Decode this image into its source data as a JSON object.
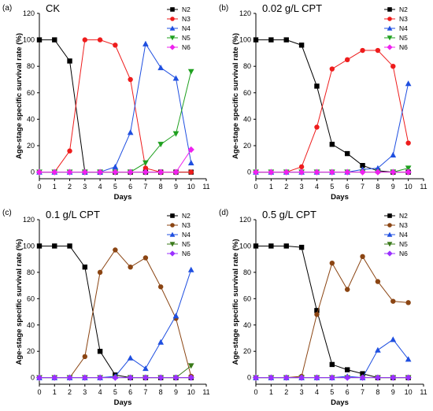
{
  "chart_data": [
    {
      "type": "line",
      "panel_label": "(a)",
      "title": "CK",
      "xlabel": "Days",
      "ylabel": "Age-stage specific survival rate (%)",
      "xlim": [
        0,
        11
      ],
      "ylim": [
        -5,
        120
      ],
      "x_ticks": [
        0,
        1,
        2,
        3,
        4,
        5,
        6,
        7,
        8,
        9,
        10,
        11
      ],
      "y_ticks": [
        0,
        20,
        40,
        60,
        80,
        100,
        120
      ],
      "legend_position": "top-right",
      "series": [
        {
          "name": "N2",
          "color": "#000000",
          "marker": "square",
          "x": [
            0,
            1,
            2,
            3,
            4,
            5,
            6,
            7,
            8,
            9,
            10
          ],
          "y": [
            100,
            100,
            84,
            0,
            0,
            0,
            0,
            0,
            0,
            0,
            0
          ]
        },
        {
          "name": "N3",
          "color": "#ee1c1c",
          "marker": "circle",
          "x": [
            0,
            1,
            2,
            3,
            4,
            5,
            6,
            7,
            8,
            9,
            10
          ],
          "y": [
            0,
            0,
            16,
            100,
            100,
            96,
            70,
            3,
            0,
            0,
            0
          ]
        },
        {
          "name": "N4",
          "color": "#1f4fe0",
          "marker": "triangle-up",
          "x": [
            0,
            1,
            2,
            3,
            4,
            5,
            6,
            7,
            8,
            9,
            10
          ],
          "y": [
            0,
            0,
            0,
            0,
            0,
            4,
            30,
            97,
            79,
            71,
            7
          ]
        },
        {
          "name": "N5",
          "color": "#1fa01f",
          "marker": "triangle-down",
          "x": [
            0,
            1,
            2,
            3,
            4,
            5,
            6,
            7,
            8,
            9,
            10
          ],
          "y": [
            0,
            0,
            0,
            0,
            0,
            0,
            0,
            7,
            21,
            29,
            76
          ]
        },
        {
          "name": "N6",
          "color": "#ee22ee",
          "marker": "diamond",
          "x": [
            0,
            1,
            2,
            3,
            4,
            5,
            6,
            7,
            8,
            9,
            10
          ],
          "y": [
            0,
            0,
            0,
            0,
            0,
            0,
            0,
            0,
            0,
            0,
            17
          ]
        }
      ]
    },
    {
      "type": "line",
      "panel_label": "(b)",
      "title": "0.02 g/L CPT",
      "xlabel": "Days",
      "ylabel": "Age-stage specific survival rate (%)",
      "xlim": [
        0,
        11
      ],
      "ylim": [
        -5,
        120
      ],
      "x_ticks": [
        0,
        1,
        2,
        3,
        4,
        5,
        6,
        7,
        8,
        9,
        10,
        11
      ],
      "y_ticks": [
        0,
        20,
        40,
        60,
        80,
        100,
        120
      ],
      "legend_position": "top-right",
      "series": [
        {
          "name": "N2",
          "color": "#000000",
          "marker": "square",
          "x": [
            0,
            1,
            2,
            3,
            4,
            5,
            6,
            7,
            8,
            9,
            10
          ],
          "y": [
            100,
            100,
            100,
            96,
            65,
            21,
            14,
            5,
            1,
            0,
            0
          ]
        },
        {
          "name": "N3",
          "color": "#ee1c1c",
          "marker": "circle",
          "x": [
            0,
            1,
            2,
            3,
            4,
            5,
            6,
            7,
            8,
            9,
            10
          ],
          "y": [
            0,
            0,
            0,
            4,
            34,
            78,
            85,
            92,
            92,
            80,
            22
          ]
        },
        {
          "name": "N4",
          "color": "#1f4fe0",
          "marker": "triangle-up",
          "x": [
            0,
            1,
            2,
            3,
            4,
            5,
            6,
            7,
            8,
            9,
            10
          ],
          "y": [
            0,
            0,
            0,
            0,
            0,
            0,
            0,
            2,
            3,
            13,
            67
          ]
        },
        {
          "name": "N5",
          "color": "#1fa01f",
          "marker": "triangle-down",
          "x": [
            0,
            1,
            2,
            3,
            4,
            5,
            6,
            7,
            8,
            9,
            10
          ],
          "y": [
            0,
            0,
            0,
            0,
            0,
            0,
            0,
            0,
            0,
            0,
            3
          ]
        },
        {
          "name": "N6",
          "color": "#ee22ee",
          "marker": "diamond",
          "x": [
            0,
            1,
            2,
            3,
            4,
            5,
            6,
            7,
            8,
            9,
            10
          ],
          "y": [
            0,
            0,
            0,
            0,
            0,
            0,
            0,
            0,
            0,
            0,
            0
          ]
        }
      ]
    },
    {
      "type": "line",
      "panel_label": "(c)",
      "title": "0.1 g/L CPT",
      "xlabel": "Days",
      "ylabel": "Age-stage specific survival rate (%)",
      "xlim": [
        0,
        11
      ],
      "ylim": [
        -5,
        120
      ],
      "x_ticks": [
        0,
        1,
        2,
        3,
        4,
        5,
        6,
        7,
        8,
        9,
        10,
        11
      ],
      "y_ticks": [
        0,
        20,
        40,
        60,
        80,
        100,
        120
      ],
      "legend_position": "top-right",
      "series": [
        {
          "name": "N2",
          "color": "#000000",
          "marker": "square",
          "x": [
            0,
            1,
            2,
            3,
            4,
            5,
            6,
            7,
            8,
            9,
            10
          ],
          "y": [
            100,
            100,
            100,
            84,
            20,
            2,
            0,
            0,
            0,
            0,
            0
          ]
        },
        {
          "name": "N3",
          "color": "#8b4513",
          "marker": "circle",
          "x": [
            0,
            1,
            2,
            3,
            4,
            5,
            6,
            7,
            8,
            9,
            10
          ],
          "y": [
            0,
            0,
            0,
            16,
            80,
            97,
            84,
            91,
            69,
            45,
            1
          ]
        },
        {
          "name": "N4",
          "color": "#1f4fe0",
          "marker": "triangle-up",
          "x": [
            0,
            1,
            2,
            3,
            4,
            5,
            6,
            7,
            8,
            9,
            10
          ],
          "y": [
            0,
            0,
            0,
            0,
            0,
            1,
            15,
            7,
            27,
            47,
            82
          ]
        },
        {
          "name": "N5",
          "color": "#3a7a1a",
          "marker": "triangle-down",
          "x": [
            0,
            1,
            2,
            3,
            4,
            5,
            6,
            7,
            8,
            9,
            10
          ],
          "y": [
            0,
            0,
            0,
            0,
            0,
            0,
            0,
            0,
            0,
            0,
            9
          ]
        },
        {
          "name": "N6",
          "color": "#9b30ff",
          "marker": "diamond",
          "x": [
            0,
            1,
            2,
            3,
            4,
            5,
            6,
            7,
            8,
            9,
            10
          ],
          "y": [
            0,
            0,
            0,
            0,
            0,
            0,
            0,
            0,
            0,
            0,
            0
          ]
        }
      ]
    },
    {
      "type": "line",
      "panel_label": "(d)",
      "title": "0.5 g/L CPT",
      "xlabel": "Days",
      "ylabel": "Age-stage specific survival rate (%)",
      "xlim": [
        0,
        11
      ],
      "ylim": [
        -5,
        120
      ],
      "x_ticks": [
        0,
        1,
        2,
        3,
        4,
        5,
        6,
        7,
        8,
        9,
        10,
        11
      ],
      "y_ticks": [
        0,
        20,
        40,
        60,
        80,
        100,
        120
      ],
      "legend_position": "top-right",
      "series": [
        {
          "name": "N2",
          "color": "#000000",
          "marker": "square",
          "x": [
            0,
            1,
            2,
            3,
            4,
            5,
            6,
            7,
            8,
            9,
            10
          ],
          "y": [
            100,
            100,
            100,
            99,
            51,
            10,
            6,
            3,
            0,
            0,
            0
          ]
        },
        {
          "name": "N3",
          "color": "#8b4513",
          "marker": "circle",
          "x": [
            0,
            1,
            2,
            3,
            4,
            5,
            6,
            7,
            8,
            9,
            10
          ],
          "y": [
            0,
            0,
            0,
            1,
            48,
            87,
            67,
            92,
            73,
            58,
            57
          ]
        },
        {
          "name": "N4",
          "color": "#1f4fe0",
          "marker": "triangle-up",
          "x": [
            0,
            1,
            2,
            3,
            4,
            5,
            6,
            7,
            8,
            9,
            10
          ],
          "y": [
            0,
            0,
            0,
            0,
            0,
            0,
            1,
            0,
            21,
            29,
            14
          ]
        },
        {
          "name": "N5",
          "color": "#3a7a1a",
          "marker": "triangle-down",
          "x": [
            0,
            1,
            2,
            3,
            4,
            5,
            6,
            7,
            8,
            9,
            10
          ],
          "y": [
            0,
            0,
            0,
            0,
            0,
            0,
            0,
            0,
            0,
            0,
            0
          ]
        },
        {
          "name": "N6",
          "color": "#9b30ff",
          "marker": "diamond",
          "x": [
            0,
            1,
            2,
            3,
            4,
            5,
            6,
            7,
            8,
            9,
            10
          ],
          "y": [
            0,
            0,
            0,
            0,
            0,
            0,
            0,
            0,
            0,
            0,
            0
          ]
        }
      ]
    }
  ]
}
